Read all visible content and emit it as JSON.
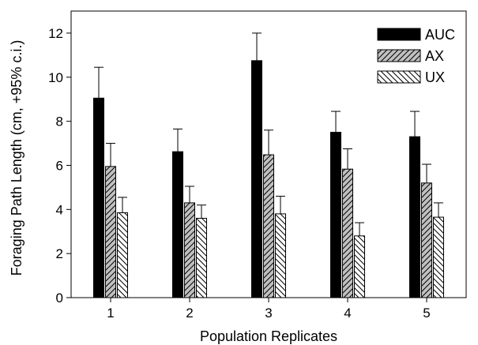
{
  "chart_data": {
    "type": "bar",
    "xlabel": "Population Replicates",
    "ylabel": "Foraging Path Length (cm, +95% c.i.)",
    "categories": [
      "1",
      "2",
      "3",
      "4",
      "5"
    ],
    "ylim": [
      0,
      13
    ],
    "yticks": [
      0,
      2,
      4,
      6,
      8,
      10,
      12
    ],
    "grid": false,
    "legend_position": "top-right",
    "series": [
      {
        "name": "AUC",
        "pattern": "solid",
        "color": "#000000",
        "values": [
          9.05,
          6.62,
          10.75,
          7.5,
          7.3
        ],
        "ci_upper": [
          10.45,
          7.65,
          12.0,
          8.45,
          8.45
        ]
      },
      {
        "name": "AX",
        "pattern": "forward-hatch",
        "color": "#c0c0c0",
        "values": [
          5.95,
          4.3,
          6.48,
          5.83,
          5.2
        ],
        "ci_upper": [
          7.0,
          5.05,
          7.6,
          6.75,
          6.05
        ]
      },
      {
        "name": "UX",
        "pattern": "back-hatch",
        "color": "#ffffff",
        "values": [
          3.85,
          3.6,
          3.8,
          2.8,
          3.65
        ],
        "ci_upper": [
          4.55,
          4.2,
          4.6,
          3.4,
          4.3
        ]
      }
    ]
  }
}
